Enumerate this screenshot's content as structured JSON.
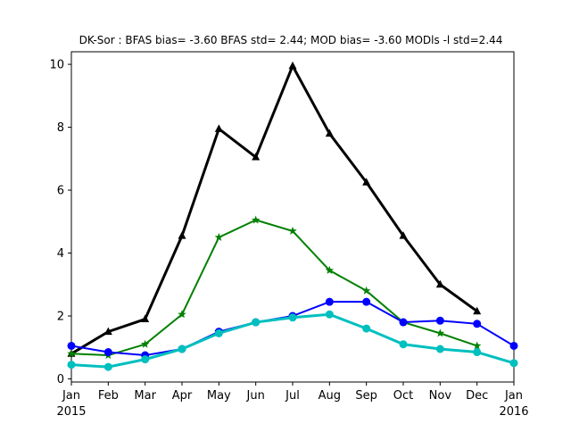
{
  "chart_data": {
    "type": "line",
    "title": "DK-Sor   : BFAS bias= -3.60 BFAS std= 2.44; MOD bias= -3.60 MODls -l std=2.44",
    "xlabel": "",
    "ylabel": "",
    "x_ticks": [
      {
        "label": "Jan",
        "sub": "2015",
        "x": 0
      },
      {
        "label": "Feb",
        "sub": "",
        "x": 1
      },
      {
        "label": "Mar",
        "sub": "",
        "x": 2
      },
      {
        "label": "Apr",
        "sub": "",
        "x": 3
      },
      {
        "label": "May",
        "sub": "",
        "x": 4
      },
      {
        "label": "Jun",
        "sub": "",
        "x": 5
      },
      {
        "label": "Jul",
        "sub": "",
        "x": 6
      },
      {
        "label": "Aug",
        "sub": "",
        "x": 7
      },
      {
        "label": "Sep",
        "sub": "",
        "x": 8
      },
      {
        "label": "Oct",
        "sub": "",
        "x": 9
      },
      {
        "label": "Nov",
        "sub": "",
        "x": 10
      },
      {
        "label": "Dec",
        "sub": "",
        "x": 11
      },
      {
        "label": "Jan",
        "sub": "2016",
        "x": 12
      }
    ],
    "y_ticks": [
      0,
      2,
      4,
      6,
      8,
      10
    ],
    "xlim": [
      0,
      12
    ],
    "ylim": [
      -0.1,
      10.4
    ],
    "grid": false,
    "series": [
      {
        "color": "#000000",
        "marker": "triangle",
        "width": 3,
        "x": [
          0,
          1,
          2,
          3,
          4,
          5,
          6,
          7,
          8,
          9,
          10,
          11
        ],
        "y": [
          0.8,
          1.5,
          1.9,
          4.55,
          7.95,
          7.05,
          9.95,
          7.8,
          6.25,
          4.55,
          3.0,
          2.15
        ]
      },
      {
        "color": "#008000",
        "marker": "star",
        "width": 2,
        "x": [
          0,
          1,
          2,
          3,
          4,
          5,
          6,
          7,
          8,
          9,
          10,
          11
        ],
        "y": [
          0.8,
          0.75,
          1.1,
          2.05,
          4.5,
          5.05,
          4.7,
          3.45,
          2.8,
          1.8,
          1.45,
          1.05
        ]
      },
      {
        "color": "#0000ff",
        "marker": "circle",
        "width": 2,
        "x": [
          0,
          1,
          2,
          3,
          4,
          5,
          6,
          7,
          8,
          9,
          10,
          11,
          12
        ],
        "y": [
          1.05,
          0.85,
          0.75,
          0.95,
          1.5,
          1.8,
          2.0,
          2.45,
          2.45,
          1.8,
          1.85,
          1.75,
          1.05
        ]
      },
      {
        "color": "#00bfbf",
        "marker": "circle",
        "width": 3,
        "x": [
          0,
          1,
          2,
          3,
          4,
          5,
          6,
          7,
          8,
          9,
          10,
          11,
          12
        ],
        "y": [
          0.45,
          0.38,
          0.62,
          0.95,
          1.45,
          1.8,
          1.95,
          2.05,
          1.6,
          1.1,
          0.95,
          0.85,
          0.5
        ]
      }
    ]
  }
}
